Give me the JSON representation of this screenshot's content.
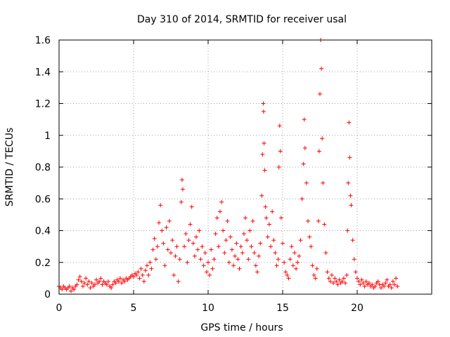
{
  "chart_data": {
    "type": "scatter",
    "title": "Day 310 of 2014, SRMTID for receiver usal",
    "xlabel": "GPS time / hours",
    "ylabel": "SRMTID / TECUs",
    "xlim": [
      0,
      25
    ],
    "ylim": [
      0,
      1.6
    ],
    "xticks": [
      0,
      5,
      10,
      15,
      20
    ],
    "yticks": [
      0,
      0.2,
      0.4,
      0.6,
      0.8,
      1.0,
      1.2,
      1.4,
      1.6
    ],
    "xtick_labels": [
      "0",
      "5",
      "10",
      "15",
      "20"
    ],
    "ytick_labels": [
      "0",
      "0.2",
      "0.4",
      "0.6",
      "0.8",
      "1",
      "1.2",
      "1.4",
      "1.6"
    ],
    "grid": true,
    "marker": "+",
    "color": "#ff0000",
    "series": [
      {
        "name": "SRMTID",
        "points": [
          [
            0.0,
            0.05
          ],
          [
            0.1,
            0.04
          ],
          [
            0.2,
            0.03
          ],
          [
            0.3,
            0.05
          ],
          [
            0.4,
            0.04
          ],
          [
            0.5,
            0.03
          ],
          [
            0.6,
            0.04
          ],
          [
            0.7,
            0.05
          ],
          [
            0.8,
            0.02
          ],
          [
            0.9,
            0.04
          ],
          [
            1.0,
            0.03
          ],
          [
            1.1,
            0.05
          ],
          [
            1.2,
            0.06
          ],
          [
            1.3,
            0.09
          ],
          [
            1.4,
            0.11
          ],
          [
            1.5,
            0.08
          ],
          [
            1.6,
            0.05
          ],
          [
            1.7,
            0.07
          ],
          [
            1.8,
            0.1
          ],
          [
            1.9,
            0.06
          ],
          [
            2.0,
            0.08
          ],
          [
            2.1,
            0.04
          ],
          [
            2.2,
            0.07
          ],
          [
            2.3,
            0.05
          ],
          [
            2.4,
            0.06
          ],
          [
            2.5,
            0.09
          ],
          [
            2.6,
            0.07
          ],
          [
            2.7,
            0.08
          ],
          [
            2.8,
            0.1
          ],
          [
            2.9,
            0.06
          ],
          [
            3.0,
            0.08
          ],
          [
            3.1,
            0.07
          ],
          [
            3.2,
            0.06
          ],
          [
            3.3,
            0.08
          ],
          [
            3.4,
            0.05
          ],
          [
            3.5,
            0.04
          ],
          [
            3.6,
            0.06
          ],
          [
            3.7,
            0.08
          ],
          [
            3.8,
            0.07
          ],
          [
            3.9,
            0.09
          ],
          [
            4.0,
            0.08
          ],
          [
            4.1,
            0.1
          ],
          [
            4.2,
            0.07
          ],
          [
            4.3,
            0.09
          ],
          [
            4.4,
            0.08
          ],
          [
            4.5,
            0.1
          ],
          [
            4.6,
            0.09
          ],
          [
            4.7,
            0.1
          ],
          [
            4.8,
            0.11
          ],
          [
            4.9,
            0.12
          ],
          [
            5.0,
            0.11
          ],
          [
            5.1,
            0.13
          ],
          [
            5.2,
            0.12
          ],
          [
            5.3,
            0.14
          ],
          [
            5.4,
            0.1
          ],
          [
            5.5,
            0.16
          ],
          [
            5.6,
            0.12
          ],
          [
            5.7,
            0.08
          ],
          [
            5.8,
            0.15
          ],
          [
            5.9,
            0.18
          ],
          [
            6.0,
            0.12
          ],
          [
            6.1,
            0.2
          ],
          [
            6.2,
            0.16
          ],
          [
            6.3,
            0.28
          ],
          [
            6.4,
            0.35
          ],
          [
            6.5,
            0.22
          ],
          [
            6.6,
            0.3
          ],
          [
            6.7,
            0.45
          ],
          [
            6.8,
            0.56
          ],
          [
            6.9,
            0.4
          ],
          [
            7.0,
            0.32
          ],
          [
            7.1,
            0.18
          ],
          [
            7.2,
            0.42
          ],
          [
            7.3,
            0.28
          ],
          [
            7.4,
            0.46
          ],
          [
            7.5,
            0.26
          ],
          [
            7.6,
            0.34
          ],
          [
            7.7,
            0.12
          ],
          [
            7.8,
            0.24
          ],
          [
            7.9,
            0.3
          ],
          [
            8.0,
            0.08
          ],
          [
            8.1,
            0.22
          ],
          [
            8.2,
            0.58
          ],
          [
            8.25,
            0.72
          ],
          [
            8.3,
            0.66
          ],
          [
            8.4,
            0.3
          ],
          [
            8.5,
            0.38
          ],
          [
            8.6,
            0.2
          ],
          [
            8.7,
            0.34
          ],
          [
            8.8,
            0.44
          ],
          [
            8.9,
            0.55
          ],
          [
            9.0,
            0.32
          ],
          [
            9.1,
            0.24
          ],
          [
            9.2,
            0.36
          ],
          [
            9.3,
            0.28
          ],
          [
            9.4,
            0.4
          ],
          [
            9.5,
            0.22
          ],
          [
            9.6,
            0.3
          ],
          [
            9.7,
            0.18
          ],
          [
            9.8,
            0.26
          ],
          [
            9.9,
            0.14
          ],
          [
            10.0,
            0.2
          ],
          [
            10.1,
            0.12
          ],
          [
            10.2,
            0.28
          ],
          [
            10.3,
            0.16
          ],
          [
            10.4,
            0.22
          ],
          [
            10.5,
            0.38
          ],
          [
            10.6,
            0.48
          ],
          [
            10.7,
            0.3
          ],
          [
            10.8,
            0.52
          ],
          [
            10.9,
            0.58
          ],
          [
            11.0,
            0.4
          ],
          [
            11.1,
            0.26
          ],
          [
            11.2,
            0.34
          ],
          [
            11.3,
            0.46
          ],
          [
            11.4,
            0.2
          ],
          [
            11.5,
            0.36
          ],
          [
            11.6,
            0.28
          ],
          [
            11.7,
            0.18
          ],
          [
            11.8,
            0.24
          ],
          [
            11.9,
            0.32
          ],
          [
            12.0,
            0.22
          ],
          [
            12.1,
            0.16
          ],
          [
            12.2,
            0.3
          ],
          [
            12.3,
            0.26
          ],
          [
            12.4,
            0.38
          ],
          [
            12.5,
            0.48
          ],
          [
            12.6,
            0.34
          ],
          [
            12.7,
            0.22
          ],
          [
            12.8,
            0.4
          ],
          [
            12.9,
            0.3
          ],
          [
            13.0,
            0.46
          ],
          [
            13.1,
            0.26
          ],
          [
            13.2,
            0.18
          ],
          [
            13.3,
            0.14
          ],
          [
            13.4,
            0.24
          ],
          [
            13.5,
            0.32
          ],
          [
            13.6,
            0.62
          ],
          [
            13.65,
            0.88
          ],
          [
            13.7,
            1.2
          ],
          [
            13.72,
            1.15
          ],
          [
            13.75,
            0.95
          ],
          [
            13.8,
            0.78
          ],
          [
            13.85,
            0.55
          ],
          [
            13.9,
            0.48
          ],
          [
            14.0,
            0.36
          ],
          [
            14.1,
            0.44
          ],
          [
            14.2,
            0.3
          ],
          [
            14.3,
            0.52
          ],
          [
            14.4,
            0.34
          ],
          [
            14.5,
            0.26
          ],
          [
            14.6,
            0.18
          ],
          [
            14.7,
            0.22
          ],
          [
            14.75,
            0.8
          ],
          [
            14.8,
            1.06
          ],
          [
            14.85,
            0.9
          ],
          [
            14.9,
            0.48
          ],
          [
            15.0,
            0.32
          ],
          [
            15.1,
            0.2
          ],
          [
            15.2,
            0.14
          ],
          [
            15.3,
            0.12
          ],
          [
            15.4,
            0.1
          ],
          [
            15.5,
            0.22
          ],
          [
            15.6,
            0.3
          ],
          [
            15.7,
            0.18
          ],
          [
            15.8,
            0.26
          ],
          [
            15.9,
            0.16
          ],
          [
            16.0,
            0.2
          ],
          [
            16.1,
            0.24
          ],
          [
            16.2,
            0.34
          ],
          [
            16.3,
            0.6
          ],
          [
            16.4,
            0.82
          ],
          [
            16.45,
            1.1
          ],
          [
            16.5,
            0.92
          ],
          [
            16.6,
            0.7
          ],
          [
            16.7,
            0.46
          ],
          [
            16.8,
            0.36
          ],
          [
            16.9,
            0.3
          ],
          [
            17.0,
            0.18
          ],
          [
            17.1,
            0.12
          ],
          [
            17.2,
            0.1
          ],
          [
            17.3,
            0.16
          ],
          [
            17.4,
            0.46
          ],
          [
            17.45,
            0.9
          ],
          [
            17.5,
            1.26
          ],
          [
            17.55,
            1.6
          ],
          [
            17.6,
            1.42
          ],
          [
            17.65,
            0.98
          ],
          [
            17.7,
            0.7
          ],
          [
            17.8,
            0.44
          ],
          [
            17.9,
            0.26
          ],
          [
            18.0,
            0.14
          ],
          [
            18.1,
            0.1
          ],
          [
            18.2,
            0.08
          ],
          [
            18.3,
            0.12
          ],
          [
            18.4,
            0.07
          ],
          [
            18.5,
            0.1
          ],
          [
            18.6,
            0.08
          ],
          [
            18.7,
            0.06
          ],
          [
            18.8,
            0.09
          ],
          [
            18.9,
            0.07
          ],
          [
            19.0,
            0.08
          ],
          [
            19.1,
            0.1
          ],
          [
            19.2,
            0.07
          ],
          [
            19.3,
            0.12
          ],
          [
            19.35,
            0.4
          ],
          [
            19.4,
            0.7
          ],
          [
            19.45,
            1.08
          ],
          [
            19.5,
            0.86
          ],
          [
            19.55,
            0.62
          ],
          [
            19.6,
            0.56
          ],
          [
            19.7,
            0.34
          ],
          [
            19.8,
            0.22
          ],
          [
            19.9,
            0.14
          ],
          [
            20.0,
            0.1
          ],
          [
            20.1,
            0.08
          ],
          [
            20.2,
            0.06
          ],
          [
            20.3,
            0.09
          ],
          [
            20.4,
            0.07
          ],
          [
            20.5,
            0.05
          ],
          [
            20.6,
            0.08
          ],
          [
            20.7,
            0.06
          ],
          [
            20.8,
            0.07
          ],
          [
            20.9,
            0.05
          ],
          [
            21.0,
            0.06
          ],
          [
            21.1,
            0.04
          ],
          [
            21.2,
            0.05
          ],
          [
            21.3,
            0.07
          ],
          [
            21.4,
            0.08
          ],
          [
            21.5,
            0.06
          ],
          [
            21.6,
            0.04
          ],
          [
            21.7,
            0.06
          ],
          [
            21.8,
            0.05
          ],
          [
            21.9,
            0.07
          ],
          [
            22.0,
            0.09
          ],
          [
            22.1,
            0.05
          ],
          [
            22.2,
            0.06
          ],
          [
            22.3,
            0.04
          ],
          [
            22.4,
            0.08
          ],
          [
            22.5,
            0.06
          ],
          [
            22.6,
            0.1
          ],
          [
            22.7,
            0.05
          ]
        ]
      }
    ]
  }
}
